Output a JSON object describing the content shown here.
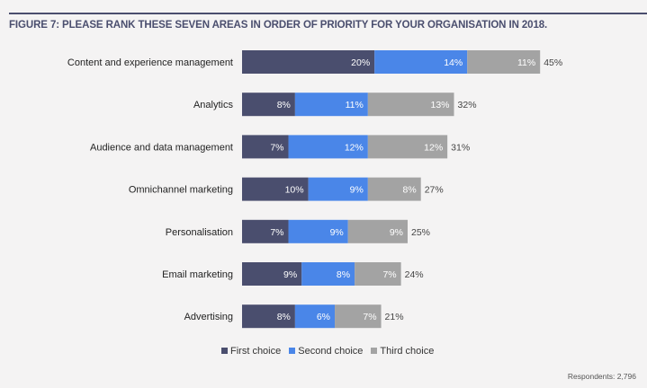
{
  "chart_data": {
    "type": "bar",
    "orientation": "horizontal",
    "stacked": true,
    "title": "FIGURE 7: PLEASE RANK THESE SEVEN AREAS IN ORDER OF PRIORITY FOR YOUR ORGANISATION IN 2018.",
    "categories": [
      "Content and experience management",
      "Analytics",
      "Audience and data management",
      "Omnichannel marketing",
      "Personalisation",
      "Email marketing",
      "Advertising"
    ],
    "series": [
      {
        "name": "First choice",
        "color": "#4a4e6e",
        "values": [
          20,
          8,
          7,
          10,
          7,
          9,
          8
        ]
      },
      {
        "name": "Second choice",
        "color": "#4a86e8",
        "values": [
          14,
          11,
          12,
          9,
          9,
          8,
          6
        ]
      },
      {
        "name": "Third choice",
        "color": "#a3a3a3",
        "values": [
          11,
          13,
          12,
          8,
          9,
          7,
          7
        ]
      }
    ],
    "totals": [
      45,
      32,
      31,
      27,
      25,
      24,
      21
    ],
    "unit": "%",
    "grid": false,
    "legend_position": "bottom"
  },
  "footer": {
    "respondents": "Respondents: 2,796"
  }
}
